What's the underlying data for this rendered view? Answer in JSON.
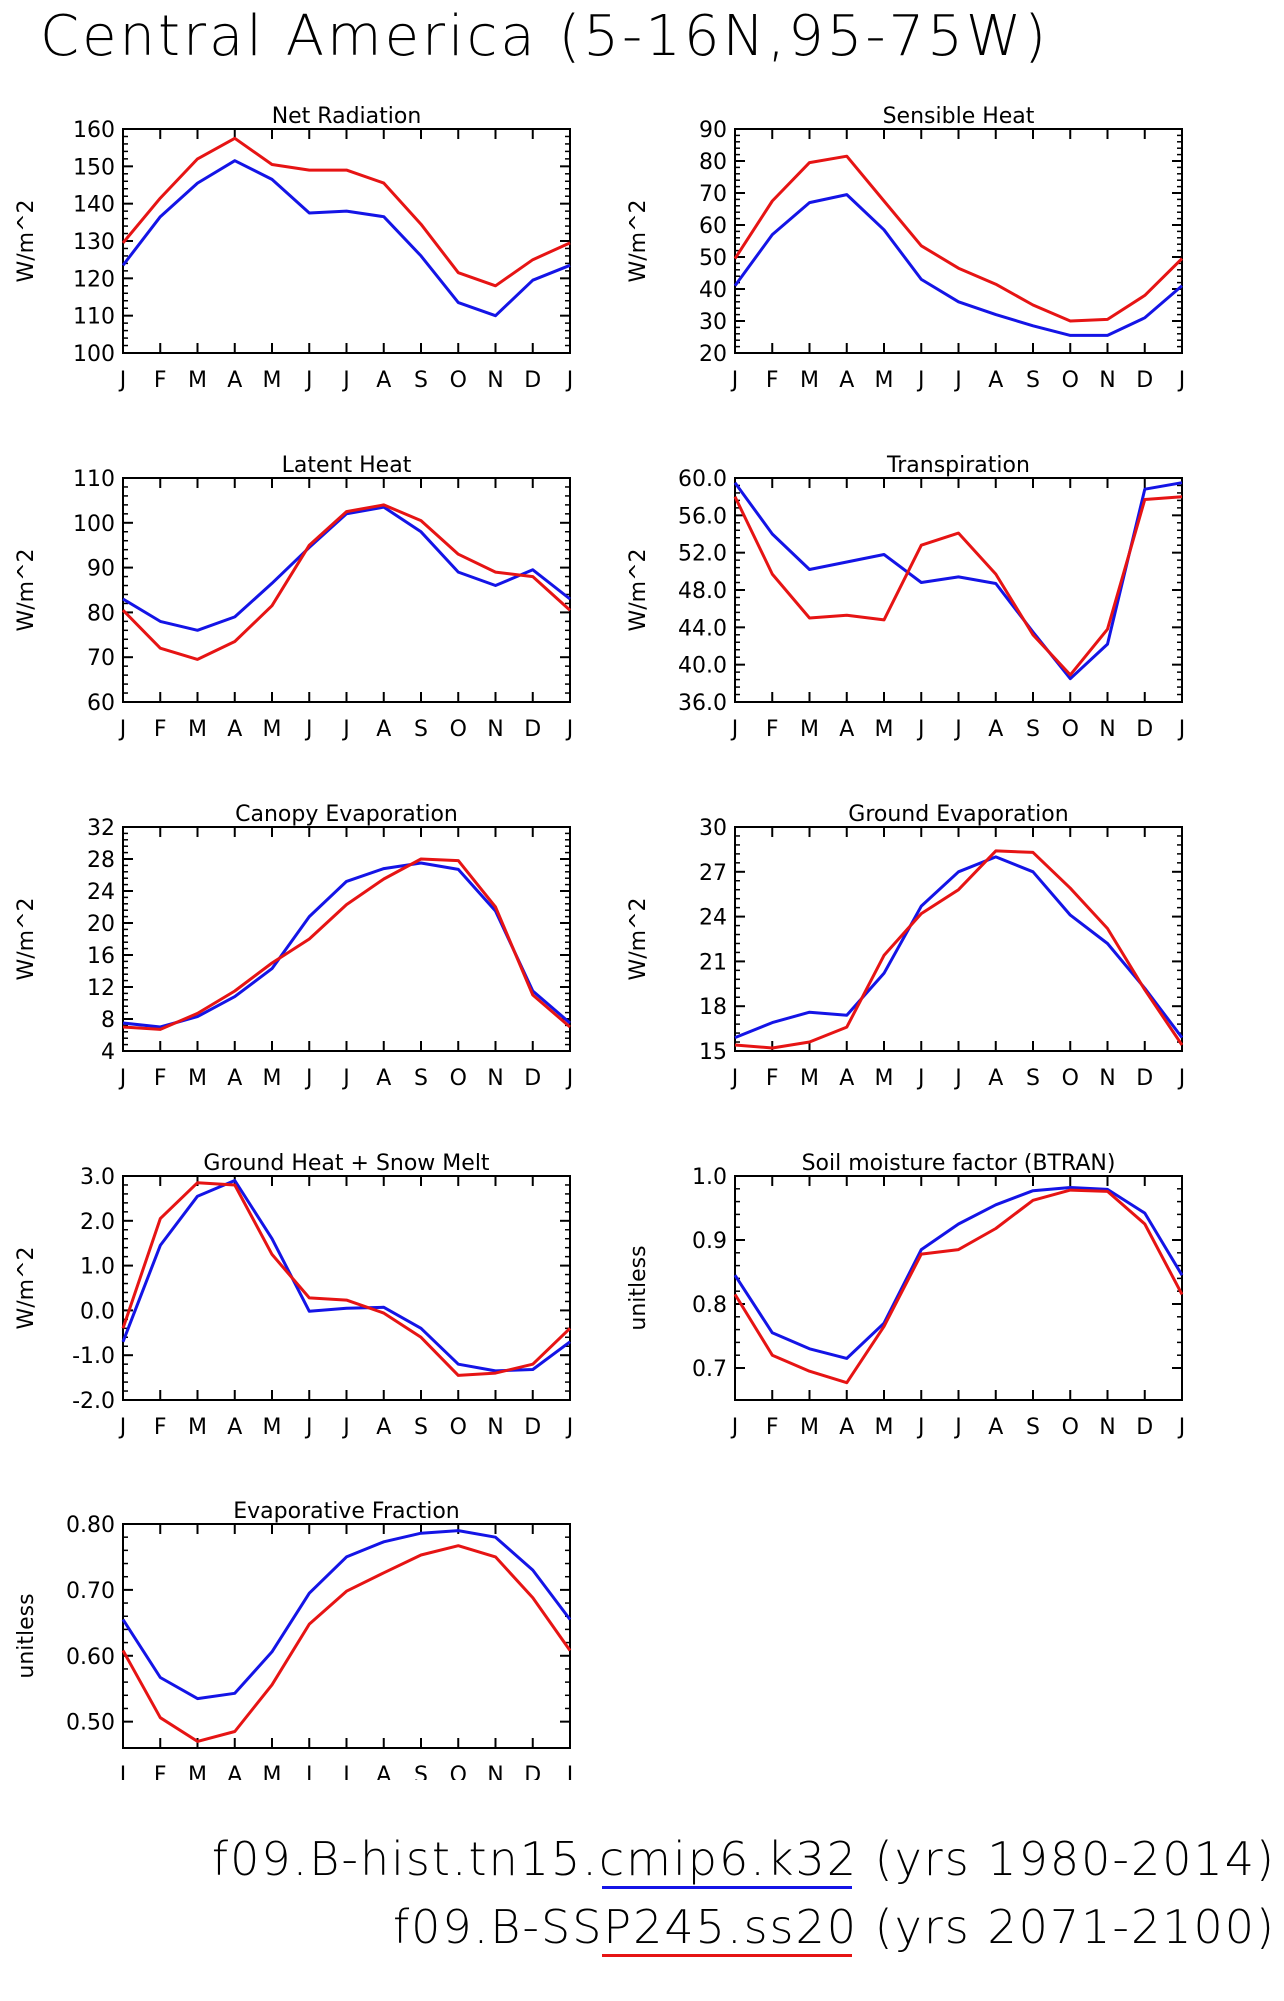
{
  "title": "Central America (5-16N,95-75W)",
  "months": [
    "J",
    "F",
    "M",
    "A",
    "M",
    "J",
    "J",
    "A",
    "S",
    "O",
    "N",
    "D",
    "J"
  ],
  "series_colors": [
    "#1414e6",
    "#e61414"
  ],
  "legend": [
    {
      "label": "f09.B-hist.tn15.cmip6.k32 (yrs 1980-2014)",
      "color": "#1414e6"
    },
    {
      "label": "f09.B-SSP245.ss20 (yrs 2071-2100)",
      "color": "#e61414"
    }
  ],
  "chart_data": [
    {
      "type": "line",
      "title": "Net Radiation",
      "ylabel": "W/m^2",
      "ylim": [
        100,
        160
      ],
      "yticks": [
        100,
        110,
        120,
        130,
        140,
        150,
        160
      ],
      "tick_decimals": 0,
      "x": [
        "J",
        "F",
        "M",
        "A",
        "M",
        "J",
        "J",
        "A",
        "S",
        "O",
        "N",
        "D",
        "J"
      ],
      "series": [
        {
          "color": "#1414e6",
          "values": [
            123.5,
            136.5,
            145.5,
            151.5,
            146.5,
            137.5,
            138.0,
            136.5,
            126.0,
            113.5,
            110.0,
            119.5,
            123.5
          ]
        },
        {
          "color": "#e61414",
          "values": [
            129.5,
            141.5,
            152.0,
            157.5,
            150.5,
            149.0,
            149.0,
            145.5,
            134.5,
            121.5,
            118.0,
            125.0,
            129.5
          ]
        }
      ]
    },
    {
      "type": "line",
      "title": "Sensible Heat",
      "ylabel": "W/m^2",
      "ylim": [
        20,
        90
      ],
      "yticks": [
        20,
        30,
        40,
        50,
        60,
        70,
        80,
        90
      ],
      "tick_decimals": 0,
      "x": [
        "J",
        "F",
        "M",
        "A",
        "M",
        "J",
        "J",
        "A",
        "S",
        "O",
        "N",
        "D",
        "J"
      ],
      "series": [
        {
          "color": "#1414e6",
          "values": [
            41,
            57,
            67,
            69.5,
            58.5,
            43,
            36,
            32,
            28.5,
            25.5,
            25.5,
            31,
            41
          ]
        },
        {
          "color": "#e61414",
          "values": [
            49.5,
            67.5,
            79.5,
            81.5,
            67.5,
            53.5,
            46.5,
            41.5,
            35,
            30,
            30.5,
            38,
            49.5
          ]
        }
      ]
    },
    {
      "type": "line",
      "title": "Latent Heat",
      "ylabel": "W/m^2",
      "ylim": [
        60,
        110
      ],
      "yticks": [
        60,
        70,
        80,
        90,
        100,
        110
      ],
      "tick_decimals": 0,
      "x": [
        "J",
        "F",
        "M",
        "A",
        "M",
        "J",
        "J",
        "A",
        "S",
        "O",
        "N",
        "D",
        "J"
      ],
      "series": [
        {
          "color": "#1414e6",
          "values": [
            83,
            78,
            76,
            79,
            86.5,
            94.5,
            102,
            103.5,
            98,
            89,
            86,
            89.5,
            83
          ]
        },
        {
          "color": "#e61414",
          "values": [
            80.5,
            72,
            69.5,
            73.5,
            81.5,
            95,
            102.5,
            104,
            100.5,
            93,
            89,
            88,
            80.5
          ]
        }
      ]
    },
    {
      "type": "line",
      "title": "Transpiration",
      "ylabel": "W/m^2",
      "ylim": [
        36,
        60
      ],
      "yticks": [
        36,
        40,
        44,
        48,
        52,
        56,
        60
      ],
      "tick_decimals": 1,
      "x": [
        "J",
        "F",
        "M",
        "A",
        "M",
        "J",
        "J",
        "A",
        "S",
        "O",
        "N",
        "D",
        "J"
      ],
      "series": [
        {
          "color": "#1414e6",
          "values": [
            59.5,
            54,
            50.2,
            51,
            51.8,
            48.8,
            49.4,
            48.7,
            43.5,
            38.5,
            42.2,
            58.8,
            59.5
          ]
        },
        {
          "color": "#e61414",
          "values": [
            58,
            49.7,
            45,
            45.3,
            44.8,
            52.8,
            54.1,
            49.7,
            43.2,
            38.9,
            43.8,
            57.7,
            58
          ]
        }
      ]
    },
    {
      "type": "line",
      "title": "Canopy Evaporation",
      "ylabel": "W/m^2",
      "ylim": [
        4,
        32
      ],
      "yticks": [
        4,
        8,
        12,
        16,
        20,
        24,
        28,
        32
      ],
      "tick_decimals": 0,
      "x": [
        "J",
        "F",
        "M",
        "A",
        "M",
        "J",
        "J",
        "A",
        "S",
        "O",
        "N",
        "D",
        "J"
      ],
      "series": [
        {
          "color": "#1414e6",
          "values": [
            7.5,
            7,
            8.3,
            10.8,
            14.3,
            20.8,
            25.2,
            26.8,
            27.5,
            26.7,
            21.5,
            11.5,
            7.5
          ]
        },
        {
          "color": "#e61414",
          "values": [
            7,
            6.7,
            8.7,
            11.5,
            15,
            18,
            22.3,
            25.5,
            28,
            27.8,
            22,
            11,
            7
          ]
        }
      ]
    },
    {
      "type": "line",
      "title": "Ground Evaporation",
      "ylabel": "W/m^2",
      "ylim": [
        15,
        30
      ],
      "yticks": [
        15,
        18,
        21,
        24,
        27,
        30
      ],
      "tick_decimals": 0,
      "x": [
        "J",
        "F",
        "M",
        "A",
        "M",
        "J",
        "J",
        "A",
        "S",
        "O",
        "N",
        "D",
        "J"
      ],
      "series": [
        {
          "color": "#1414e6",
          "values": [
            15.9,
            16.9,
            17.6,
            17.4,
            20.2,
            24.7,
            27,
            28,
            27,
            24.1,
            22.2,
            19.2,
            15.9
          ]
        },
        {
          "color": "#e61414",
          "values": [
            15.4,
            15.2,
            15.6,
            16.6,
            21.4,
            24.2,
            25.8,
            28.4,
            28.3,
            25.9,
            23.2,
            19.1,
            15.4
          ]
        }
      ]
    },
    {
      "type": "line",
      "title": "Ground Heat + Snow Melt",
      "ylabel": "W/m^2",
      "ylim": [
        -2,
        3
      ],
      "yticks": [
        -2,
        -1,
        0,
        1,
        2,
        3
      ],
      "tick_decimals": 1,
      "x": [
        "J",
        "F",
        "M",
        "A",
        "M",
        "J",
        "J",
        "A",
        "S",
        "O",
        "N",
        "D",
        "J"
      ],
      "series": [
        {
          "color": "#1414e6",
          "values": [
            -0.7,
            1.45,
            2.55,
            2.9,
            1.6,
            -0.02,
            0.05,
            0.07,
            -0.4,
            -1.2,
            -1.35,
            -1.32,
            -0.7
          ]
        },
        {
          "color": "#e61414",
          "values": [
            -0.4,
            2.05,
            2.85,
            2.8,
            1.25,
            0.28,
            0.23,
            -0.06,
            -0.6,
            -1.45,
            -1.4,
            -1.2,
            -0.4
          ]
        }
      ]
    },
    {
      "type": "line",
      "title": "Soil moisture factor (BTRAN)",
      "ylabel": "unitless",
      "ylim": [
        0.65,
        1.0
      ],
      "yticks": [
        0.7,
        0.8,
        0.9,
        1.0
      ],
      "tick_decimals": 1,
      "x": [
        "J",
        "F",
        "M",
        "A",
        "M",
        "J",
        "J",
        "A",
        "S",
        "O",
        "N",
        "D",
        "J"
      ],
      "series": [
        {
          "color": "#1414e6",
          "values": [
            0.845,
            0.755,
            0.73,
            0.715,
            0.77,
            0.885,
            0.925,
            0.955,
            0.977,
            0.982,
            0.979,
            0.942,
            0.845
          ]
        },
        {
          "color": "#e61414",
          "values": [
            0.815,
            0.72,
            0.695,
            0.677,
            0.765,
            0.878,
            0.885,
            0.918,
            0.962,
            0.978,
            0.976,
            0.925,
            0.815
          ]
        }
      ]
    },
    {
      "type": "line",
      "title": "Evaporative Fraction",
      "ylabel": "unitless",
      "ylim": [
        0.46,
        0.8
      ],
      "yticks": [
        0.5,
        0.6,
        0.7,
        0.8
      ],
      "tick_decimals": 2,
      "x": [
        "J",
        "F",
        "M",
        "A",
        "M",
        "J",
        "J",
        "A",
        "S",
        "O",
        "N",
        "D",
        "J"
      ],
      "series": [
        {
          "color": "#1414e6",
          "values": [
            0.655,
            0.567,
            0.535,
            0.543,
            0.606,
            0.695,
            0.75,
            0.773,
            0.786,
            0.79,
            0.78,
            0.73,
            0.655
          ]
        },
        {
          "color": "#e61414",
          "values": [
            0.608,
            0.506,
            0.47,
            0.485,
            0.556,
            0.648,
            0.698,
            0.726,
            0.753,
            0.767,
            0.75,
            0.688,
            0.608
          ]
        }
      ]
    }
  ]
}
